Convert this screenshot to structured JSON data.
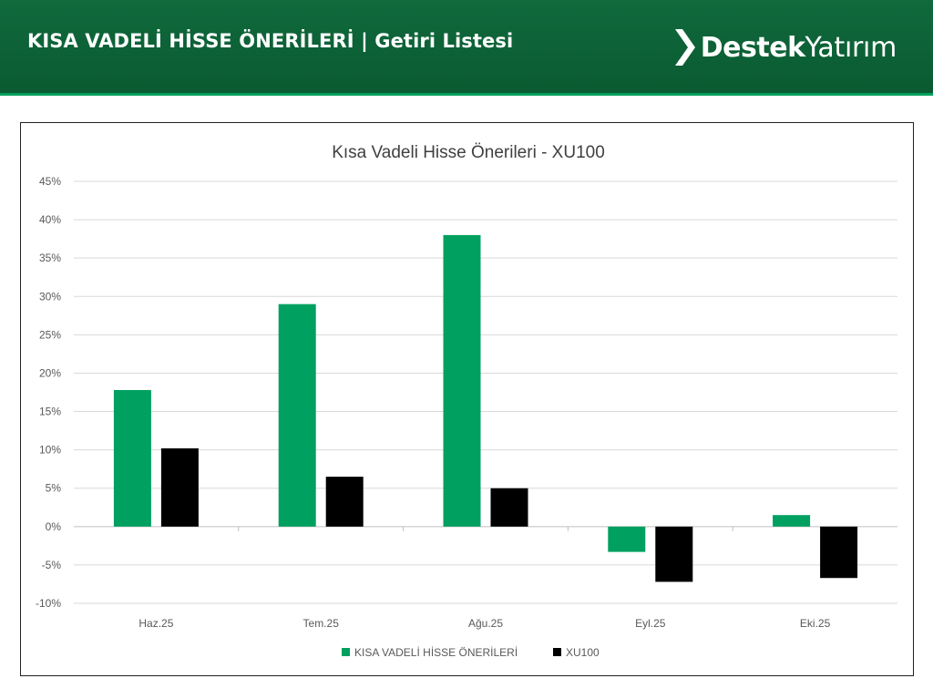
{
  "header": {
    "title": "KISA VADELİ HİSSE ÖNERİLERİ | Getiri Listesi",
    "brand_strong": "Destek",
    "brand_light": "Yatırım",
    "brand_icon": "chevron-logo-icon"
  },
  "colors": {
    "header_bg": "#0f6a3c",
    "series_green": "#00a060",
    "series_black": "#000000"
  },
  "chart_data": {
    "type": "bar",
    "title": "Kısa Vadeli Hisse Önerileri - XU100",
    "categories": [
      "Haz.25",
      "Tem.25",
      "Ağu.25",
      "Eyl.25",
      "Eki.25"
    ],
    "series": [
      {
        "name": "KISA VADELİ HİSSE ÖNERİLERİ",
        "color": "#00a060",
        "values": [
          17.8,
          29.0,
          38.0,
          -3.3,
          1.5
        ]
      },
      {
        "name": "XU100",
        "color": "#000000",
        "values": [
          10.2,
          6.5,
          5.0,
          -7.2,
          -6.7
        ]
      }
    ],
    "yticks": [
      "-10%",
      "-5%",
      "0%",
      "5%",
      "10%",
      "15%",
      "20%",
      "25%",
      "30%",
      "35%",
      "40%",
      "45%"
    ],
    "ylim": [
      -10,
      45
    ],
    "ystep": 5,
    "grid": true,
    "legend_position": "bottom"
  }
}
